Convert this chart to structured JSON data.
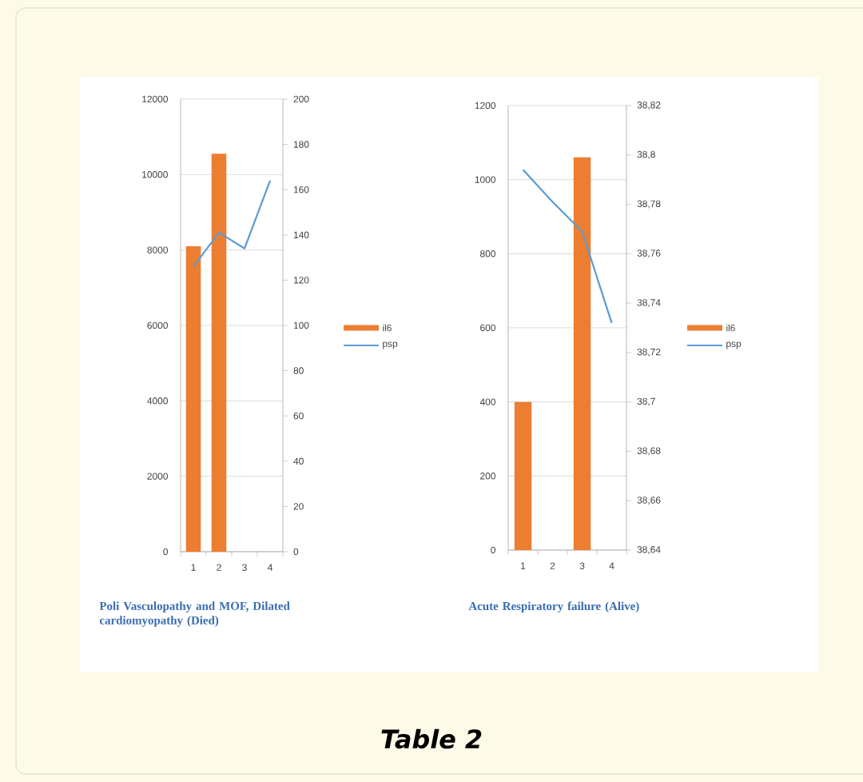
{
  "chart_data": [
    {
      "type": "bar",
      "xlabel": "Poli Vasculopathy and MOF, Dilated cardiomyopathy (Died)",
      "categories": [
        "1",
        "2",
        "3",
        "4"
      ],
      "series": [
        {
          "name": "il6",
          "type": "bar",
          "color": "#ed7d31",
          "values": [
            8100,
            10550,
            null,
            null
          ]
        },
        {
          "name": "psp",
          "type": "line",
          "axis": "y2",
          "color": "#5b9bd5",
          "values": [
            126,
            141,
            134,
            164
          ]
        }
      ],
      "ylim": [
        0,
        12000
      ],
      "yticks": [
        0,
        2000,
        4000,
        6000,
        8000,
        10000,
        12000
      ],
      "y2lim": [
        0,
        200
      ],
      "y2ticks": [
        0,
        20,
        40,
        60,
        80,
        100,
        120,
        140,
        160,
        180,
        200
      ],
      "grid": "y",
      "legend": "right"
    },
    {
      "type": "bar",
      "xlabel": "Acute Respiratory failure (Alive)",
      "categories": [
        "1",
        "2",
        "3",
        "4"
      ],
      "series": [
        {
          "name": "il6",
          "type": "bar",
          "color": "#ed7d31",
          "values": [
            400,
            null,
            1060,
            null
          ]
        },
        {
          "name": "psp",
          "type": "line",
          "axis": "y2",
          "color": "#5b9bd5",
          "values": [
            38.794,
            38.781,
            38.769,
            38.732
          ]
        }
      ],
      "ylim": [
        0,
        1200
      ],
      "yticks": [
        0,
        200,
        400,
        600,
        800,
        1000,
        1200
      ],
      "y2lim": [
        38.64,
        38.82
      ],
      "y2ticks": [
        {
          "value": 38.64,
          "label": "38,64"
        },
        {
          "value": 38.66,
          "label": "38,66"
        },
        {
          "value": 38.68,
          "label": "38,68"
        },
        {
          "value": 38.7,
          "label": "38,7"
        },
        {
          "value": 38.72,
          "label": "38,72"
        },
        {
          "value": 38.74,
          "label": "38,74"
        },
        {
          "value": 38.76,
          "label": "38,76"
        },
        {
          "value": 38.78,
          "label": "38,78"
        },
        {
          "value": 38.8,
          "label": "38,8"
        },
        {
          "value": 38.82,
          "label": "38,82"
        }
      ],
      "grid": "y",
      "legend": "right",
      "annotations": [
        "Table 2"
      ]
    }
  ]
}
